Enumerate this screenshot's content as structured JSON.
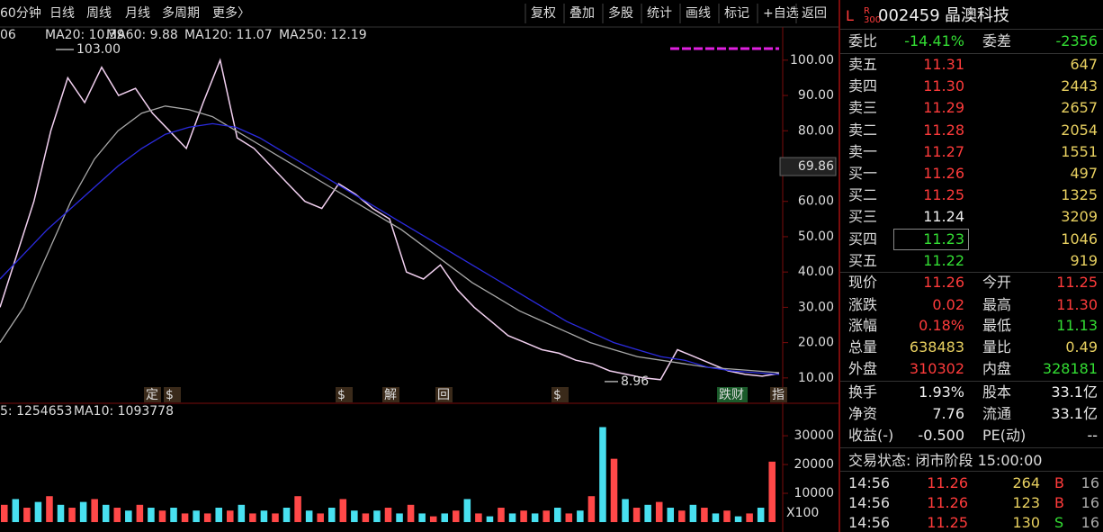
{
  "toolbar": {
    "left": [
      "60分钟",
      "日线",
      "周线",
      "月线",
      "多周期",
      "更多〉"
    ],
    "right": [
      "复权",
      "叠加",
      "多股",
      "统计",
      "画线",
      "标记",
      "+自选",
      "返回"
    ]
  },
  "chart_data": [
    {
      "type": "line",
      "legend": [
        "06",
        "MA20: 10.39",
        "MA60: 9.88",
        "MA120: 11.07",
        "MA250: 12.19"
      ],
      "series": [
        {
          "color": "#f2d0f0",
          "values": [
            30,
            45,
            60,
            80,
            95,
            88,
            98,
            90,
            92,
            85,
            80,
            75,
            88,
            100,
            78,
            75,
            70,
            65,
            60,
            58,
            65,
            62,
            58,
            55,
            40,
            38,
            42,
            35,
            30,
            26,
            22,
            20,
            18,
            17,
            15,
            14,
            12,
            11,
            10,
            9.5,
            18,
            16,
            14,
            12,
            11,
            10.5,
            11.26
          ]
        },
        {
          "color": "#a8a8a8",
          "values": [
            20,
            30,
            45,
            60,
            72,
            80,
            85,
            87,
            86,
            84,
            80,
            76,
            72,
            68,
            64,
            60,
            56,
            52,
            47,
            42,
            37,
            33,
            29,
            26,
            23,
            20,
            18,
            16,
            15,
            14,
            13,
            12.5,
            12,
            11.5
          ]
        },
        {
          "color": "#2b2be0",
          "values": [
            38,
            45,
            52,
            58,
            64,
            70,
            75,
            79,
            81,
            82,
            81,
            78,
            74,
            70,
            66,
            62,
            58,
            54,
            50,
            46,
            42,
            38,
            34,
            30,
            26,
            23,
            20,
            18,
            16,
            15,
            13,
            12,
            11.5,
            11
          ]
        }
      ],
      "ylim": [
        6.9,
        104.8
      ],
      "yticks": [
        {
          "value": 10,
          "label": "10.00"
        },
        {
          "value": 20,
          "label": "20.00"
        },
        {
          "value": 30,
          "label": "30.00"
        },
        {
          "value": 40,
          "label": "40.00"
        },
        {
          "value": 50,
          "label": "50.00"
        },
        {
          "value": 60,
          "label": "60.00"
        },
        {
          "value": 70,
          "label": "70.00"
        },
        {
          "value": 80,
          "label": "80.00"
        },
        {
          "value": 90,
          "label": "90.00"
        },
        {
          "value": 100,
          "label": "100.00"
        }
      ],
      "annotations": [
        {
          "value": 103,
          "label": "103.00"
        },
        {
          "value": 8.96,
          "label": "8.96"
        }
      ],
      "cursor": {
        "value": 69.86,
        "label": "69.86"
      },
      "events": [
        "定",
        "$",
        "$",
        "解",
        "回",
        "$",
        "跌财",
        "指"
      ]
    },
    {
      "type": "bar",
      "legend": [
        "5: 1254653",
        "MA10: 1093778"
      ],
      "unit": "X100",
      "colors": [
        "#ff4848",
        "#48e0f0"
      ],
      "values": [
        6000,
        8000,
        5000,
        7000,
        9000,
        6000,
        5000,
        7000,
        8000,
        6000,
        5000,
        4000,
        6000,
        5000,
        4000,
        5000,
        3000,
        4000,
        3000,
        5000,
        4000,
        6000,
        3000,
        4000,
        3000,
        5000,
        9000,
        4000,
        3000,
        5000,
        8000,
        4000,
        3000,
        4000,
        5000,
        3000,
        6000,
        3000,
        2000,
        3000,
        4000,
        8000,
        3000,
        2000,
        5000,
        3000,
        4000,
        3000,
        4000,
        5000,
        3000,
        4000,
        9000,
        33000,
        22000,
        8000,
        5000,
        6000,
        7000,
        5000,
        4000,
        6000,
        5000,
        3000,
        4000,
        2000,
        3000,
        5000,
        21000
      ],
      "ylim": [
        0,
        34400
      ],
      "yticks": [
        10000,
        20000,
        30000
      ]
    }
  ],
  "quote": {
    "flag": "L",
    "market": "R 300",
    "code": "002459",
    "name": "晶澳科技",
    "ratio": [
      "委比",
      "-14.41%",
      "委差",
      "-2356"
    ],
    "book": [
      [
        "卖五",
        "11.31",
        "647"
      ],
      [
        "卖四",
        "11.30",
        "2443"
      ],
      [
        "卖三",
        "11.29",
        "2657"
      ],
      [
        "卖二",
        "11.28",
        "2054"
      ],
      [
        "卖一",
        "11.27",
        "1551"
      ],
      [
        "买一",
        "11.26",
        "497"
      ],
      [
        "买二",
        "11.25",
        "1325"
      ],
      [
        "买三",
        "11.24",
        "3209"
      ],
      [
        "买四",
        "11.23",
        "1046"
      ],
      [
        "买五",
        "11.22",
        "919"
      ]
    ],
    "stats": [
      [
        "现价",
        "11.26",
        "今开",
        "11.25"
      ],
      [
        "涨跌",
        "0.02",
        "最高",
        "11.30"
      ],
      [
        "涨幅",
        "0.18%",
        "最低",
        "11.13"
      ],
      [
        "总量",
        "638483",
        "量比",
        "0.49"
      ],
      [
        "外盘",
        "310302",
        "内盘",
        "328181"
      ],
      [
        "换手",
        "1.93%",
        "股本",
        "33.1亿"
      ],
      [
        "净资",
        "7.76",
        "流通",
        "33.1亿"
      ],
      [
        "收益(-)",
        "-0.500",
        "PE(动)",
        "--"
      ]
    ],
    "status": "交易状态: 闭市阶段 15:00:00",
    "ticks": [
      [
        "14:56",
        "11.26",
        "264",
        "B",
        "16"
      ],
      [
        "14:56",
        "11.26",
        "123",
        "B",
        "16"
      ],
      [
        "14:56",
        "11.25",
        "130",
        "S",
        "16"
      ]
    ]
  }
}
